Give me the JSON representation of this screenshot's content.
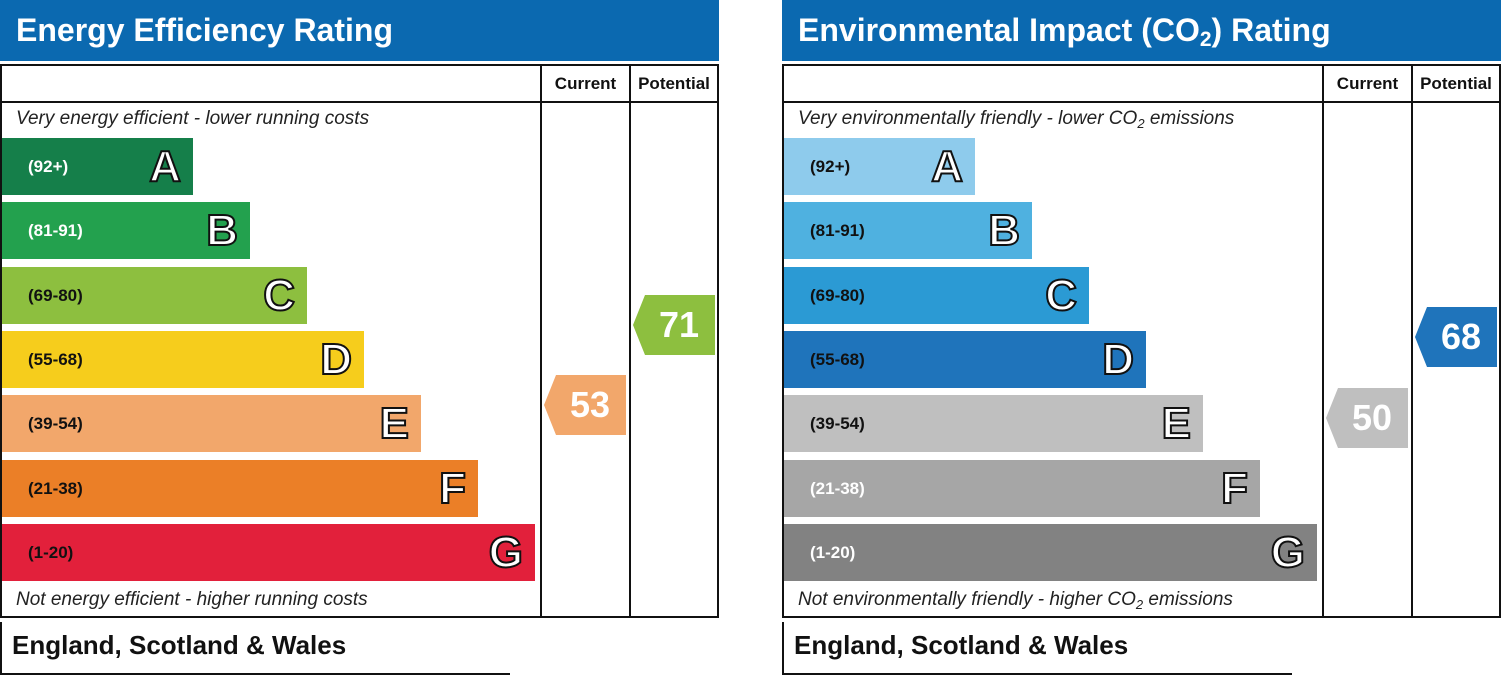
{
  "chart_data": [
    {
      "type": "bar",
      "title": "Energy Efficiency Rating",
      "columns": [
        "Current",
        "Potential"
      ],
      "top_note": "Very energy efficient - lower running costs",
      "bottom_note": "Not energy efficient - higher running costs",
      "footer": "England, Scotland & Wales",
      "bands": [
        {
          "letter": "A",
          "range": "(92+)",
          "color": "#157f4a",
          "label_color": "#ffffff"
        },
        {
          "letter": "B",
          "range": "(81-91)",
          "color": "#23a14e",
          "label_color": "#ffffff"
        },
        {
          "letter": "C",
          "range": "(69-80)",
          "color": "#8dbf3f",
          "label_color": "#111111"
        },
        {
          "letter": "D",
          "range": "(55-68)",
          "color": "#f6cd1c",
          "label_color": "#111111"
        },
        {
          "letter": "E",
          "range": "(39-54)",
          "color": "#f2a76b",
          "label_color": "#111111"
        },
        {
          "letter": "F",
          "range": "(21-38)",
          "color": "#eb7f27",
          "label_color": "#111111"
        },
        {
          "letter": "G",
          "range": "(1-20)",
          "color": "#e2203b",
          "label_color": "#111111"
        }
      ],
      "current": {
        "value": 53,
        "band": "E",
        "color": "#f2a76b"
      },
      "potential": {
        "value": 71,
        "band": "C",
        "color": "#8dbf3f"
      },
      "header_color": "#0b69b0"
    },
    {
      "type": "bar",
      "title": "Environmental Impact (CO",
      "title_sub": "2",
      "title_end": ") Rating",
      "columns": [
        "Current",
        "Potential"
      ],
      "top_note": "Very environmentally friendly - lower CO",
      "top_note_sub": "2",
      "top_note_end": " emissions",
      "bottom_note": "Not environmentally friendly - higher CO",
      "bottom_note_sub": "2",
      "bottom_note_end": " emissions",
      "footer": "England, Scotland & Wales",
      "bands": [
        {
          "letter": "A",
          "range": "(92+)",
          "color": "#8ecbec",
          "label_color": "#111111"
        },
        {
          "letter": "B",
          "range": "(81-91)",
          "color": "#4fb1e0",
          "label_color": "#111111"
        },
        {
          "letter": "C",
          "range": "(69-80)",
          "color": "#2b9ad4",
          "label_color": "#111111"
        },
        {
          "letter": "D",
          "range": "(55-68)",
          "color": "#1f74bb",
          "label_color": "#111111"
        },
        {
          "letter": "E",
          "range": "(39-54)",
          "color": "#bfbfbf",
          "label_color": "#111111"
        },
        {
          "letter": "F",
          "range": "(21-38)",
          "color": "#a6a6a6",
          "label_color": "#ffffff"
        },
        {
          "letter": "G",
          "range": "(1-20)",
          "color": "#828282",
          "label_color": "#ffffff"
        }
      ],
      "current": {
        "value": 50,
        "band": "E",
        "color": "#bfbfbf"
      },
      "potential": {
        "value": 68,
        "band": "D",
        "color": "#1f74bb"
      },
      "header_color": "#0b69b0"
    }
  ]
}
